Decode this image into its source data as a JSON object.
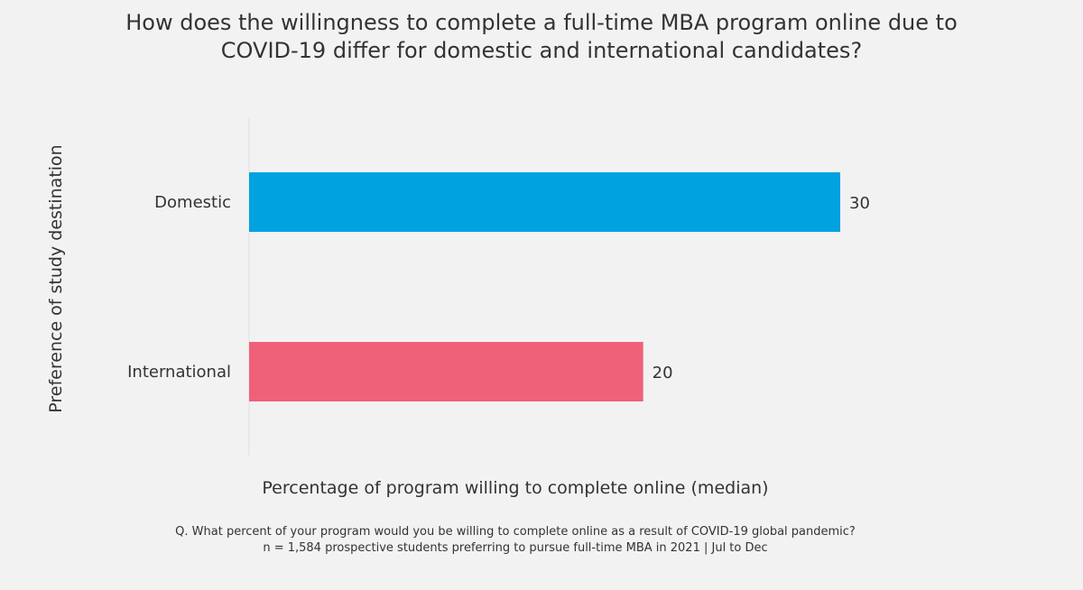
{
  "chart_data": {
    "type": "bar",
    "orientation": "horizontal",
    "title_line1": "How does the willingness to complete a full-time MBA program online due to",
    "title_line2": "COVID-19 differ for domestic and international candidates?",
    "xlabel": "Percentage of program willing to complete online (median)",
    "ylabel": "Preference of study destination",
    "categories": [
      "Domestic",
      "International"
    ],
    "values": [
      30,
      20
    ],
    "data_labels": [
      "30",
      "20"
    ],
    "colors": [
      "#00a2e0",
      "#ef6178"
    ],
    "xlim": [
      0,
      30
    ],
    "grid": false,
    "legend": "none"
  },
  "footnote": {
    "line1": "Q. What percent of your program would you be willing to complete online as a result of COVID-19 global pandemic?",
    "line2": "n = 1,584 prospective students preferring to pursue full-time MBA in 2021 | Jul to Dec"
  },
  "colors": {
    "background": "#f2f2f2",
    "text": "#333333",
    "axis_line": "#dddddd"
  }
}
